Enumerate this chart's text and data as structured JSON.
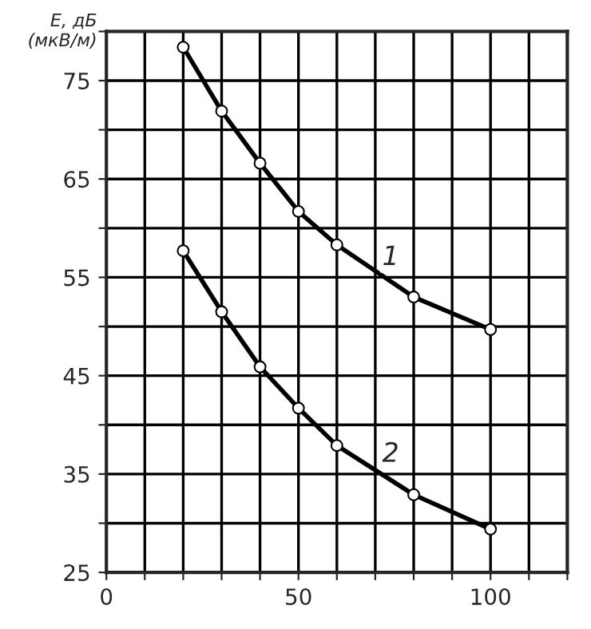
{
  "chart_data": {
    "type": "line",
    "ylabel": "Е, дБ\n(мкВ/м)",
    "annotations": [
      {
        "text": "1",
        "x": 74,
        "y": 57
      },
      {
        "text": "2",
        "x": 74,
        "y": 37
      }
    ],
    "series": [
      {
        "color": "#000000",
        "x": [
          20,
          30,
          40,
          50,
          60,
          80,
          100
        ],
        "values": [
          78.4,
          71.9,
          66.6,
          61.7,
          58.3,
          53.0,
          49.7
        ]
      },
      {
        "color": "#000000",
        "x": [
          20,
          30,
          40,
          50,
          60,
          80,
          100
        ],
        "values": [
          57.7,
          51.5,
          45.9,
          41.7,
          37.9,
          32.9,
          29.4
        ]
      }
    ],
    "xlim": [
      0,
      120
    ],
    "ylim": [
      25,
      80
    ],
    "xticks": [
      0,
      {
        "value": 10,
        "label": null
      },
      {
        "value": 20,
        "label": null
      },
      {
        "value": 30,
        "label": null
      },
      {
        "value": 40,
        "label": null
      },
      50,
      {
        "value": 60,
        "label": null
      },
      {
        "value": 70,
        "label": null
      },
      {
        "value": 80,
        "label": null
      },
      {
        "value": 90,
        "label": null
      },
      100,
      {
        "value": 110,
        "label": null
      },
      {
        "value": 120,
        "label": null
      }
    ],
    "yticks": [
      25,
      {
        "value": 30,
        "label": null
      },
      35,
      {
        "value": 40,
        "label": null
      },
      45,
      {
        "value": 50,
        "label": null
      },
      55,
      {
        "value": 60,
        "label": null
      },
      65,
      {
        "value": 70,
        "label": null
      },
      75,
      {
        "value": 80,
        "label": null
      }
    ],
    "grid": true,
    "marker": "circle",
    "line_style": "solid",
    "legend": false
  }
}
